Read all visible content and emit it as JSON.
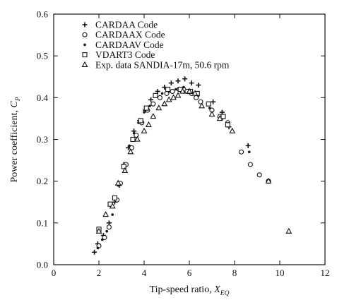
{
  "chart_data": {
    "type": "scatter",
    "xlabel": "Tip-speed ratio, ",
    "xlabel_var": "X",
    "xlabel_sub": "EQ",
    "ylabel": "Power coefficient, ",
    "ylabel_var": "C",
    "ylabel_sub": "P",
    "xlim": [
      0,
      12
    ],
    "ylim": [
      0,
      0.6
    ],
    "xticks": [
      0,
      2,
      4,
      6,
      8,
      10,
      12
    ],
    "yticks": [
      0.0,
      0.1,
      0.2,
      0.3,
      0.4,
      0.5,
      0.6
    ],
    "xtick_labels": [
      "0",
      "2",
      "4",
      "6",
      "8",
      "10",
      "12"
    ],
    "ytick_labels": [
      "0.0",
      "0.1",
      "0.2",
      "0.3",
      "0.4",
      "0.5",
      "0.6"
    ],
    "grid": false,
    "legend_position": "top-left",
    "series": [
      {
        "name": "CARDAA Code",
        "marker": "plus",
        "color": "#111111",
        "points": [
          [
            1.8,
            0.03
          ],
          [
            1.95,
            0.05
          ],
          [
            2.2,
            0.07
          ],
          [
            2.45,
            0.1
          ],
          [
            2.7,
            0.15
          ],
          [
            2.9,
            0.19
          ],
          [
            3.1,
            0.24
          ],
          [
            3.3,
            0.28
          ],
          [
            3.55,
            0.32
          ],
          [
            3.8,
            0.345
          ],
          [
            4.05,
            0.37
          ],
          [
            4.3,
            0.395
          ],
          [
            4.6,
            0.415
          ],
          [
            4.9,
            0.425
          ],
          [
            5.2,
            0.435
          ],
          [
            5.5,
            0.44
          ],
          [
            5.8,
            0.445
          ],
          [
            6.1,
            0.435
          ],
          [
            6.4,
            0.43
          ],
          [
            7.05,
            0.39
          ],
          [
            7.45,
            0.365
          ],
          [
            7.75,
            0.33
          ],
          [
            8.6,
            0.285
          ],
          [
            9.5,
            0.2
          ]
        ]
      },
      {
        "name": "CARDAAX Code",
        "marker": "circle",
        "color": "#111111",
        "points": [
          [
            2.0,
            0.045
          ],
          [
            2.25,
            0.065
          ],
          [
            2.45,
            0.09
          ],
          [
            2.8,
            0.155
          ],
          [
            2.95,
            0.195
          ],
          [
            3.2,
            0.24
          ],
          [
            3.45,
            0.28
          ],
          [
            3.65,
            0.31
          ],
          [
            3.9,
            0.34
          ],
          [
            4.15,
            0.37
          ],
          [
            4.4,
            0.385
          ],
          [
            4.7,
            0.4
          ],
          [
            5.0,
            0.41
          ],
          [
            5.25,
            0.415
          ],
          [
            5.55,
            0.42
          ],
          [
            5.75,
            0.42
          ],
          [
            5.9,
            0.415
          ],
          [
            6.1,
            0.41
          ],
          [
            6.3,
            0.4
          ],
          [
            6.5,
            0.39
          ],
          [
            7.0,
            0.37
          ],
          [
            7.35,
            0.355
          ],
          [
            7.7,
            0.34
          ],
          [
            8.3,
            0.27
          ],
          [
            8.7,
            0.24
          ],
          [
            9.1,
            0.215
          ],
          [
            9.5,
            0.2
          ]
        ]
      },
      {
        "name": "CARDAAV Code",
        "marker": "dot",
        "color": "#111111",
        "points": [
          [
            1.95,
            0.04
          ],
          [
            2.15,
            0.06
          ],
          [
            2.35,
            0.08
          ],
          [
            2.6,
            0.12
          ],
          [
            2.85,
            0.19
          ],
          [
            3.1,
            0.235
          ],
          [
            3.35,
            0.285
          ],
          [
            3.55,
            0.315
          ],
          [
            3.75,
            0.34
          ],
          [
            4.0,
            0.365
          ],
          [
            4.25,
            0.38
          ],
          [
            4.5,
            0.405
          ],
          [
            4.8,
            0.41
          ],
          [
            5.1,
            0.415
          ],
          [
            5.4,
            0.42
          ],
          [
            5.75,
            0.425
          ],
          [
            6.05,
            0.415
          ],
          [
            6.4,
            0.405
          ],
          [
            6.9,
            0.375
          ],
          [
            7.45,
            0.35
          ],
          [
            8.65,
            0.27
          ],
          [
            9.45,
            0.2
          ]
        ]
      },
      {
        "name": "VDART3 Code",
        "marker": "square",
        "color": "#111111",
        "points": [
          [
            2.0,
            0.085
          ],
          [
            2.5,
            0.145
          ],
          [
            2.7,
            0.16
          ],
          [
            3.1,
            0.235
          ],
          [
            3.5,
            0.3
          ],
          [
            3.85,
            0.345
          ],
          [
            4.1,
            0.375
          ],
          [
            4.5,
            0.405
          ],
          [
            5.05,
            0.42
          ],
          [
            5.6,
            0.42
          ],
          [
            6.05,
            0.415
          ],
          [
            6.35,
            0.41
          ],
          [
            6.85,
            0.385
          ],
          [
            7.5,
            0.355
          ],
          [
            7.7,
            0.335
          ]
        ]
      },
      {
        "name": "Exp. data SANDIA-17m, 50.6 rpm",
        "marker": "triangle",
        "color": "#111111",
        "points": [
          [
            2.0,
            0.08
          ],
          [
            2.3,
            0.12
          ],
          [
            2.6,
            0.14
          ],
          [
            2.85,
            0.195
          ],
          [
            3.15,
            0.225
          ],
          [
            3.4,
            0.27
          ],
          [
            3.7,
            0.3
          ],
          [
            4.0,
            0.32
          ],
          [
            4.2,
            0.335
          ],
          [
            4.4,
            0.355
          ],
          [
            4.65,
            0.375
          ],
          [
            4.9,
            0.385
          ],
          [
            5.1,
            0.395
          ],
          [
            5.3,
            0.4
          ],
          [
            5.5,
            0.405
          ],
          [
            5.7,
            0.415
          ],
          [
            6.0,
            0.415
          ],
          [
            6.25,
            0.41
          ],
          [
            6.55,
            0.38
          ],
          [
            7.0,
            0.36
          ],
          [
            7.35,
            0.35
          ],
          [
            7.9,
            0.32
          ],
          [
            9.5,
            0.2
          ],
          [
            10.4,
            0.08
          ]
        ]
      }
    ]
  }
}
